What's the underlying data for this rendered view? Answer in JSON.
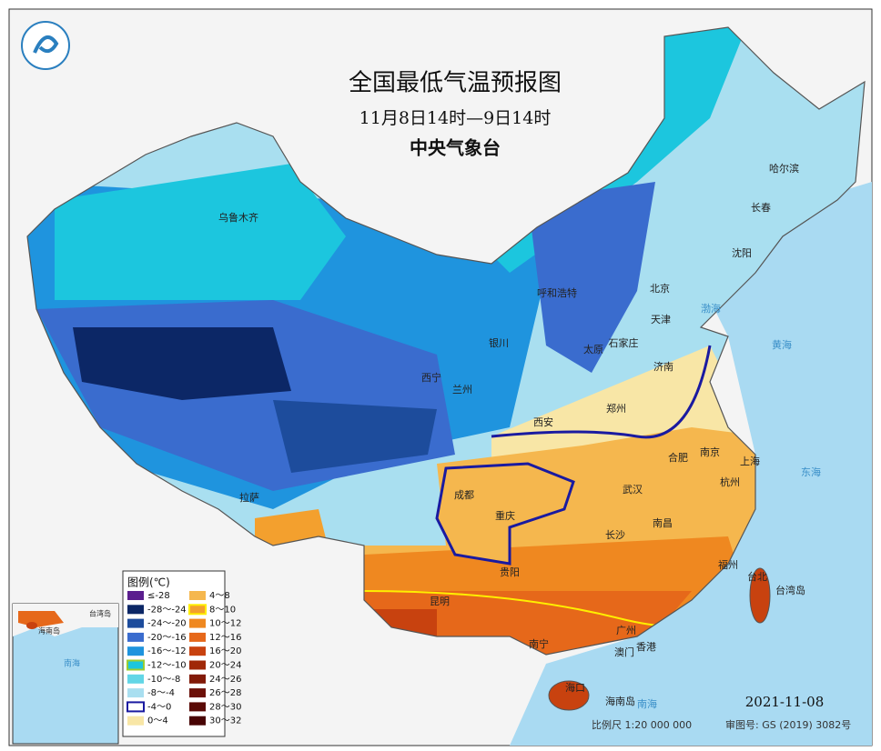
{
  "header": {
    "title": "全国最低气温预报图",
    "subtitle": "11月8日14时—9日14时",
    "org": "中央气象台"
  },
  "legend": {
    "title": "图例(℃)",
    "items": [
      {
        "label": "≤-28",
        "color": "#5b1e8e"
      },
      {
        "label": "-28～-24",
        "color": "#0c2766"
      },
      {
        "label": "-24～-20",
        "color": "#1d4c9c"
      },
      {
        "label": "-20～-16",
        "color": "#3a6cce"
      },
      {
        "label": "-16～-12",
        "color": "#1f94de"
      },
      {
        "label": "-12～-10",
        "color": "#1cc6de",
        "outline": "#9acd32"
      },
      {
        "label": "-10～-8",
        "color": "#62d6e6"
      },
      {
        "label": "-8～-4",
        "color": "#a9dff0"
      },
      {
        "label": "-4～0",
        "color": "#ffffff",
        "outline": "#1a1aa0"
      },
      {
        "label": "0～4",
        "color": "#f8e6a6"
      },
      {
        "label": "4～8",
        "color": "#f5b74e"
      },
      {
        "label": "8～10",
        "color": "#f3a02e",
        "outline": "#ffee00"
      },
      {
        "label": "10～12",
        "color": "#ef8820"
      },
      {
        "label": "12～16",
        "color": "#e6681a"
      },
      {
        "label": "16～20",
        "color": "#c8420f"
      },
      {
        "label": "20～24",
        "color": "#a02808"
      },
      {
        "label": "24～26",
        "color": "#821a08"
      },
      {
        "label": "26～28",
        "color": "#6c1008"
      },
      {
        "label": "28～30",
        "color": "#5a0a06"
      },
      {
        "label": "30～32",
        "color": "#480404"
      }
    ]
  },
  "cities": [
    "乌鲁木齐",
    "哈尔滨",
    "长春",
    "沈阳",
    "呼和浩特",
    "北京",
    "天津",
    "银川",
    "石家庄",
    "太原",
    "济南",
    "西宁",
    "兰州",
    "西安",
    "郑州",
    "合肥",
    "南京",
    "上海",
    "成都",
    "武汉",
    "杭州",
    "拉萨",
    "重庆",
    "南昌",
    "长沙",
    "福州",
    "台北",
    "台湾岛",
    "贵阳",
    "昆明",
    "南宁",
    "广州",
    "澳门",
    "香港",
    "海口",
    "海南岛"
  ],
  "seas": [
    "渤海",
    "黄海",
    "东海",
    "南海"
  ],
  "inset": {
    "labels": [
      "海南岛",
      "台湾岛",
      "南海"
    ]
  },
  "footer": {
    "date": "2021-11-08",
    "scale": "比例尺 1:20 000 000",
    "approval": "审图号: GS (2019) 3082号"
  }
}
